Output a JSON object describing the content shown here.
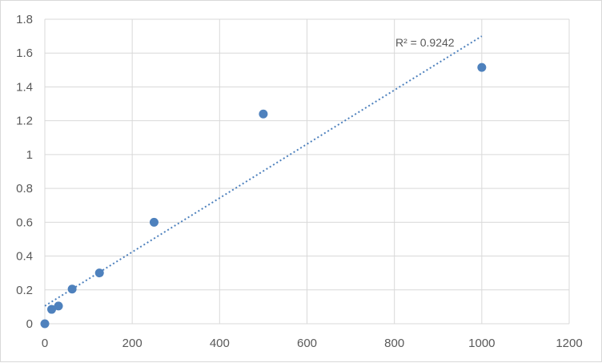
{
  "chart_data": {
    "type": "scatter",
    "title": "",
    "xlabel": "",
    "ylabel": "",
    "xlim": [
      0,
      1200
    ],
    "ylim": [
      0,
      1.8
    ],
    "x_ticks": [
      "0",
      "200",
      "400",
      "600",
      "800",
      "1000",
      "1200"
    ],
    "y_ticks": [
      "0",
      "0.2",
      "0.4",
      "0.6",
      "0.8",
      "1",
      "1.2",
      "1.4",
      "1.6",
      "1.8"
    ],
    "grid": true,
    "legend": "none",
    "series": [
      {
        "color": "#4e81bd",
        "x": [
          0,
          15.6,
          31.2,
          62.5,
          125,
          250,
          500,
          1000
        ],
        "y": [
          0.0,
          0.085,
          0.105,
          0.205,
          0.3,
          0.6,
          1.24,
          1.515
        ]
      }
    ],
    "trendline": {
      "type": "linear",
      "style": "dotted",
      "color": "#4e81bd",
      "x": [
        0,
        1000
      ],
      "y": [
        0.105,
        1.7
      ],
      "label": "R² = 0.9242"
    }
  }
}
